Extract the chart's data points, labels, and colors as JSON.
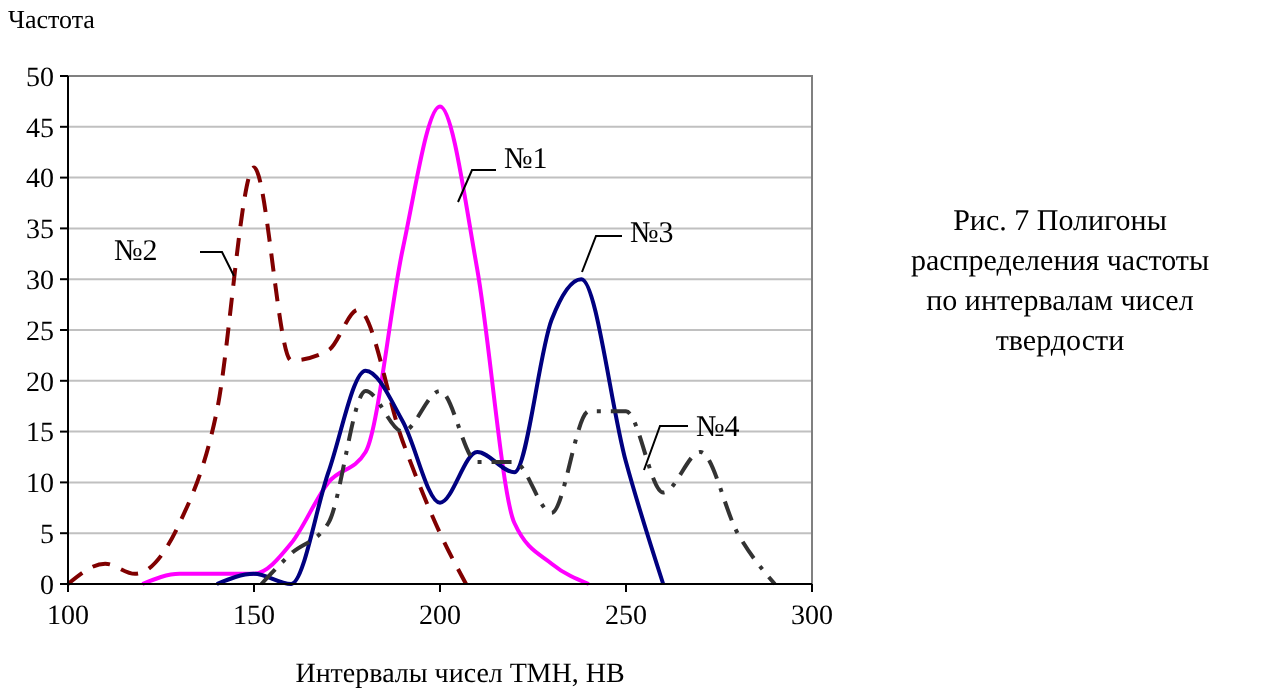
{
  "chart_data": {
    "type": "line",
    "ylabel": "Частота",
    "xlabel": "Интервалы чисел ТМН, НВ",
    "annotations": [
      "Рис. 7 Полигоны распределения частоты по интервалам чисел твердости"
    ],
    "xlim": [
      100,
      300
    ],
    "xticks": [
      100,
      150,
      200,
      250,
      300
    ],
    "ylim": [
      0,
      50
    ],
    "yticks": [
      0,
      5,
      10,
      15,
      20,
      25,
      30,
      35,
      40,
      45,
      50
    ],
    "grid": "y",
    "marker": "none",
    "series": [
      {
        "name": "№1",
        "color": "#ff00ff",
        "line_style": "solid",
        "x": [
          120,
          130,
          140,
          150,
          160,
          170,
          180,
          190,
          200,
          210,
          220,
          230,
          240
        ],
        "values": [
          0,
          1,
          1,
          1,
          4,
          10,
          13,
          33,
          47,
          31,
          6,
          2,
          0
        ]
      },
      {
        "name": "№2",
        "color": "#800000",
        "line_style": "dashed",
        "x": [
          100,
          110,
          118,
          130,
          140,
          150,
          160,
          170,
          178,
          190,
          200,
          207
        ],
        "values": [
          0,
          2,
          1,
          6,
          17,
          41,
          22,
          23,
          27,
          14,
          5,
          0
        ]
      },
      {
        "name": "№3",
        "color": "#000080",
        "line_style": "solid",
        "x": [
          140,
          150,
          160,
          170,
          180,
          190,
          200,
          210,
          220,
          230,
          238,
          250,
          260
        ],
        "values": [
          0,
          1,
          0,
          11,
          21,
          16,
          8,
          13,
          11,
          26,
          30,
          12,
          0
        ]
      },
      {
        "name": "№4",
        "color": "#333333",
        "line_style": "dashdot",
        "x": [
          152,
          160,
          170,
          180,
          190,
          200,
          210,
          220,
          230,
          240,
          250,
          260,
          270,
          280,
          290
        ],
        "values": [
          0,
          3,
          6,
          19,
          15,
          19,
          12,
          12,
          7,
          17,
          17,
          9,
          13,
          5,
          0
        ]
      }
    ]
  }
}
